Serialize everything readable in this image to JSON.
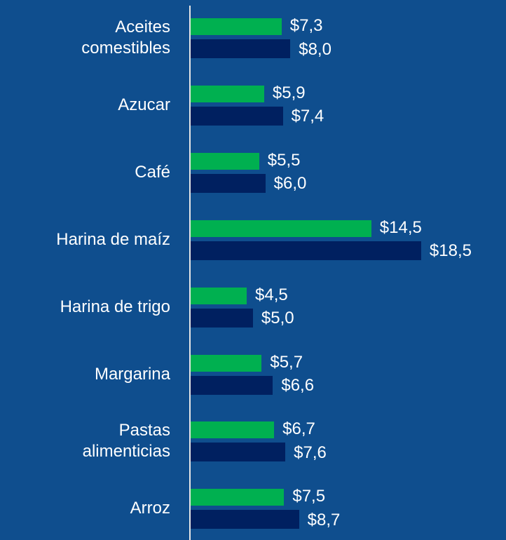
{
  "chart_data": {
    "type": "bar",
    "orientation": "horizontal",
    "categories": [
      "Aceites\ncomestibles",
      "Azucar",
      "Café",
      "Harina de maíz",
      "Harina de trigo",
      "Margarina",
      "Pastas\nalimenticias",
      "Arroz"
    ],
    "series": [
      {
        "color": "#00b050",
        "values": [
          7.3,
          5.9,
          5.5,
          14.5,
          4.5,
          5.7,
          6.7,
          7.5
        ],
        "value_labels": [
          "$7,3",
          "$5,9",
          "$5,5",
          "$14,5",
          "$4,5",
          "$5,7",
          "$6,7",
          "$7,5"
        ]
      },
      {
        "color": "#002060",
        "values": [
          8.0,
          7.4,
          6.0,
          18.5,
          5.0,
          6.6,
          7.6,
          8.7
        ],
        "value_labels": [
          "$8,0",
          "$7,4",
          "$6,0",
          "$18,5",
          "$5,0",
          "$6,6",
          "$7,6",
          "$8,7"
        ]
      }
    ]
  }
}
